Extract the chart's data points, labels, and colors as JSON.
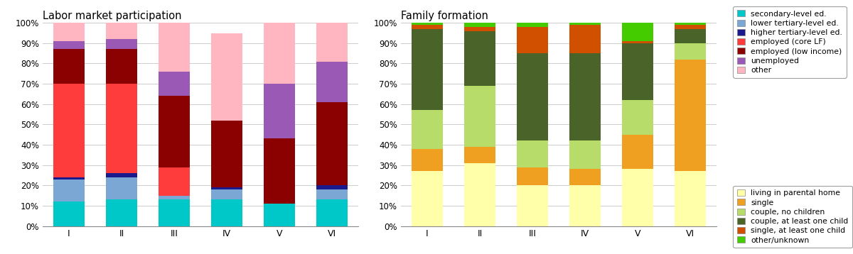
{
  "categories": [
    "I",
    "II",
    "III",
    "IV",
    "V",
    "VI"
  ],
  "lmp_title": "Labor market participation",
  "ff_title": "Family formation",
  "lmp_colors": [
    "#00C8C8",
    "#7BA7D4",
    "#1A1A8C",
    "#FF3C3C",
    "#8B0000",
    "#9B59B6",
    "#FFB6C1"
  ],
  "lmp_labels": [
    "secondary-level ed.",
    "lower tertiary-level ed.",
    "higher tertiary-level ed.",
    "employed (core LF)",
    "employed (low income)",
    "unemployed",
    "other"
  ],
  "lmp_data": [
    [
      12,
      11,
      1,
      46,
      17,
      4,
      9
    ],
    [
      13,
      11,
      2,
      44,
      17,
      5,
      8
    ],
    [
      13,
      2,
      0,
      14,
      35,
      12,
      24
    ],
    [
      13,
      5,
      1,
      0,
      33,
      0,
      43
    ],
    [
      11,
      0,
      0,
      0,
      32,
      27,
      30
    ],
    [
      13,
      5,
      2,
      0,
      41,
      20,
      19
    ]
  ],
  "ff_colors": [
    "#FFFFAA",
    "#F0A020",
    "#B8DC6A",
    "#4A6328",
    "#D05000",
    "#44CC00"
  ],
  "ff_labels": [
    "living in parental home",
    "single",
    "couple, no children",
    "couple, at least one child",
    "single, at least one child",
    "other/unknown"
  ],
  "ff_data": [
    [
      27,
      11,
      19,
      40,
      2,
      1
    ],
    [
      31,
      8,
      30,
      27,
      2,
      2
    ],
    [
      20,
      9,
      13,
      43,
      13,
      2
    ],
    [
      20,
      8,
      14,
      43,
      14,
      1
    ],
    [
      28,
      17,
      17,
      28,
      1,
      9
    ],
    [
      27,
      55,
      8,
      7,
      2,
      1
    ]
  ],
  "background_color": "#FFFFFF",
  "grid_color": "#CCCCCC"
}
